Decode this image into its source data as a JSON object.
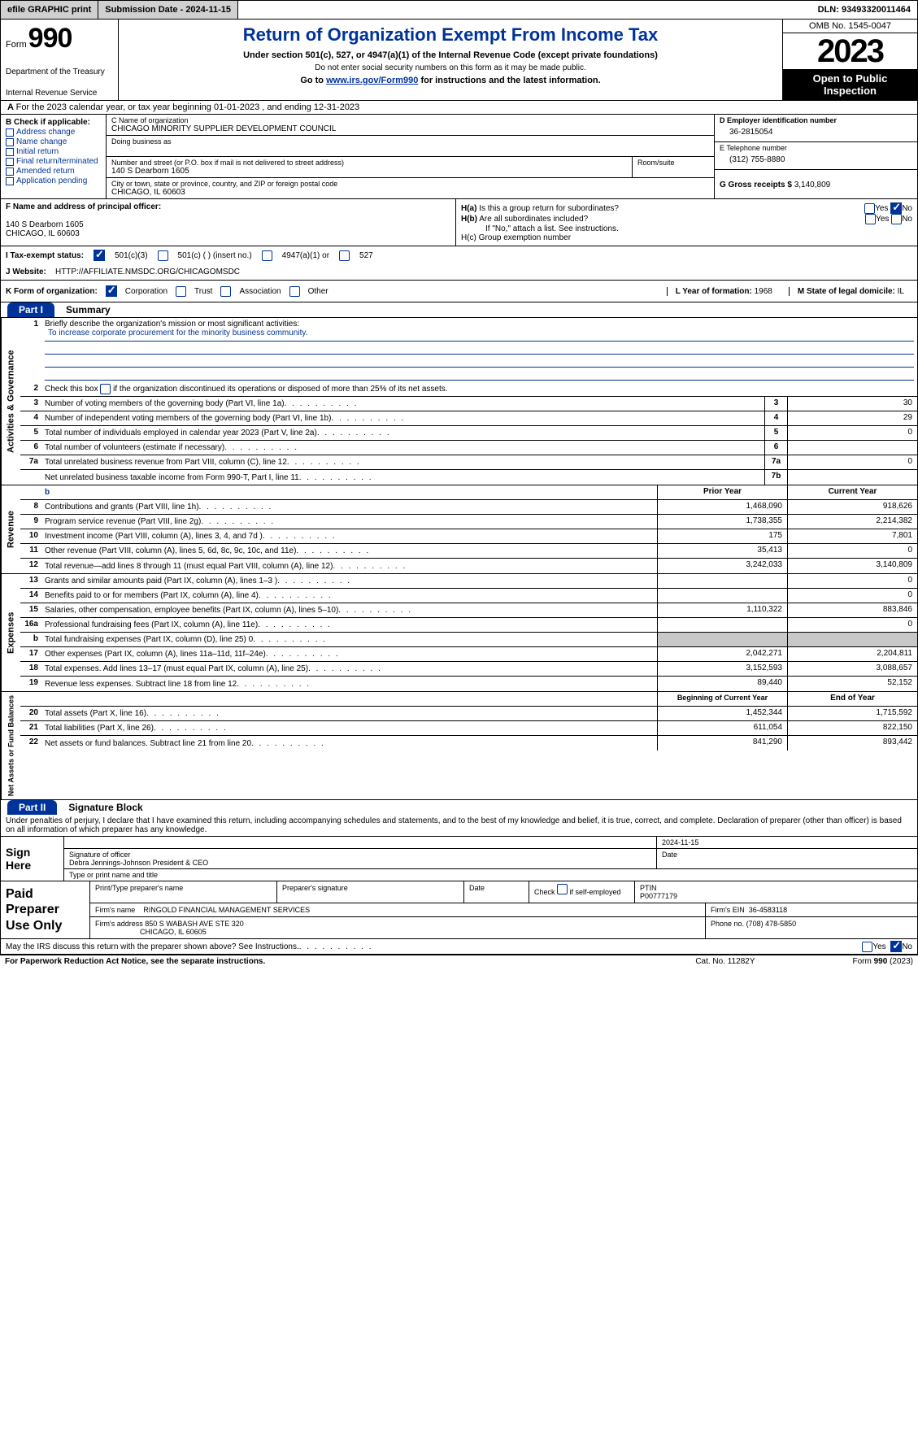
{
  "topbar": {
    "efile": "efile GRAPHIC print",
    "submission": "Submission Date - 2024-11-15",
    "dln": "DLN: 93493320011464"
  },
  "header": {
    "form_word": "Form",
    "form_num": "990",
    "dept": "Department of the Treasury",
    "irs": "Internal Revenue Service",
    "title": "Return of Organization Exempt From Income Tax",
    "subtitle": "Under section 501(c), 527, or 4947(a)(1) of the Internal Revenue Code (except private foundations)",
    "subtext": "Do not enter social security numbers on this form as it may be made public.",
    "goto_pre": "Go to ",
    "goto_link": "www.irs.gov/Form990",
    "goto_post": " for instructions and the latest information.",
    "omb": "OMB No. 1545-0047",
    "year": "2023",
    "open": "Open to Public Inspection"
  },
  "row_a": "For the 2023 calendar year, or tax year beginning 01-01-2023    , and ending 12-31-2023",
  "box_b": {
    "label": "B Check if applicable:",
    "items": [
      "Address change",
      "Name change",
      "Initial return",
      "Final return/terminated",
      "Amended return",
      "Application pending"
    ]
  },
  "box_c": {
    "name_lbl": "C Name of organization",
    "name": "CHICAGO MINORITY SUPPLIER DEVELOPMENT COUNCIL",
    "dba_lbl": "Doing business as",
    "addr_lbl": "Number and street (or P.O. box if mail is not delivered to street address)",
    "addr": "140 S Dearborn 1605",
    "room_lbl": "Room/suite",
    "city_lbl": "City or town, state or province, country, and ZIP or foreign postal code",
    "city": "CHICAGO, IL  60603"
  },
  "box_d": {
    "lbl": "D Employer identification number",
    "val": "36-2815054"
  },
  "box_e": {
    "lbl": "E Telephone number",
    "val": "(312) 755-8880"
  },
  "box_g": {
    "lbl": "G Gross receipts $",
    "val": "3,140,809"
  },
  "box_f": {
    "lbl": "F  Name and address of principal officer:",
    "addr1": "140 S Dearborn 1605",
    "addr2": "CHICAGO, IL  60603"
  },
  "box_h": {
    "ha": "H(a)  Is this a group return for subordinates?",
    "hb": "H(b)  Are all subordinates included?",
    "hb_note": "If \"No,\" attach a list. See instructions.",
    "hc": "H(c)  Group exemption number"
  },
  "box_i": {
    "lbl": "I    Tax-exempt status:",
    "opts": [
      "501(c)(3)",
      "501(c) (  ) (insert no.)",
      "4947(a)(1) or",
      "527"
    ]
  },
  "box_j": {
    "lbl": "J    Website:",
    "val": "HTTP://AFFILIATE.NMSDC.ORG/CHICAGOMSDC"
  },
  "box_k": {
    "lbl": "K Form of organization:",
    "opts": [
      "Corporation",
      "Trust",
      "Association",
      "Other"
    ]
  },
  "box_l": {
    "lbl": "L Year of formation:",
    "val": "1968"
  },
  "box_m": {
    "lbl": "M State of legal domicile:",
    "val": "IL"
  },
  "part1": {
    "num": "Part I",
    "title": "Summary"
  },
  "sections": {
    "gov": {
      "label": "Activities & Governance",
      "q1": "Briefly describe the organization's mission or most significant activities:",
      "mission": "To increase corporate procurement for the minority business community.",
      "q2": "Check this box         if the organization discontinued its operations or disposed of more than 25% of its net assets.",
      "rows": [
        {
          "n": "3",
          "d": "Number of voting members of the governing body (Part VI, line 1a)",
          "c": "3",
          "v": "30"
        },
        {
          "n": "4",
          "d": "Number of independent voting members of the governing body (Part VI, line 1b)",
          "c": "4",
          "v": "29"
        },
        {
          "n": "5",
          "d": "Total number of individuals employed in calendar year 2023 (Part V, line 2a)",
          "c": "5",
          "v": "0"
        },
        {
          "n": "6",
          "d": "Total number of volunteers (estimate if necessary)",
          "c": "6",
          "v": ""
        },
        {
          "n": "7a",
          "d": "Total unrelated business revenue from Part VIII, column (C), line 12",
          "c": "7a",
          "v": "0"
        },
        {
          "n": "",
          "d": "Net unrelated business taxable income from Form 990-T, Part I, line 11",
          "c": "7b",
          "v": ""
        }
      ]
    },
    "rev": {
      "label": "Revenue",
      "hdr_prior": "Prior Year",
      "hdr_curr": "Current Year",
      "rows": [
        {
          "n": "8",
          "d": "Contributions and grants (Part VIII, line 1h)",
          "p": "1,468,090",
          "c": "918,626"
        },
        {
          "n": "9",
          "d": "Program service revenue (Part VIII, line 2g)",
          "p": "1,738,355",
          "c": "2,214,382"
        },
        {
          "n": "10",
          "d": "Investment income (Part VIII, column (A), lines 3, 4, and 7d )",
          "p": "175",
          "c": "7,801"
        },
        {
          "n": "11",
          "d": "Other revenue (Part VIII, column (A), lines 5, 6d, 8c, 9c, 10c, and 11e)",
          "p": "35,413",
          "c": "0"
        },
        {
          "n": "12",
          "d": "Total revenue—add lines 8 through 11 (must equal Part VIII, column (A), line 12)",
          "p": "3,242,033",
          "c": "3,140,809"
        }
      ]
    },
    "exp": {
      "label": "Expenses",
      "rows": [
        {
          "n": "13",
          "d": "Grants and similar amounts paid (Part IX, column (A), lines 1–3 )",
          "p": "",
          "c": "0"
        },
        {
          "n": "14",
          "d": "Benefits paid to or for members (Part IX, column (A), line 4)",
          "p": "",
          "c": "0"
        },
        {
          "n": "15",
          "d": "Salaries, other compensation, employee benefits (Part IX, column (A), lines 5–10)",
          "p": "1,110,322",
          "c": "883,846"
        },
        {
          "n": "16a",
          "d": "Professional fundraising fees (Part IX, column (A), line 11e)",
          "p": "",
          "c": "0"
        },
        {
          "n": "b",
          "d": "Total fundraising expenses (Part IX, column (D), line 25) 0",
          "p": "GRAY",
          "c": "GRAY"
        },
        {
          "n": "17",
          "d": "Other expenses (Part IX, column (A), lines 11a–11d, 11f–24e)",
          "p": "2,042,271",
          "c": "2,204,811"
        },
        {
          "n": "18",
          "d": "Total expenses. Add lines 13–17 (must equal Part IX, column (A), line 25)",
          "p": "3,152,593",
          "c": "3,088,657"
        },
        {
          "n": "19",
          "d": "Revenue less expenses. Subtract line 18 from line 12",
          "p": "89,440",
          "c": "52,152"
        }
      ]
    },
    "net": {
      "label": "Net Assets or Fund Balances",
      "hdr_begin": "Beginning of Current Year",
      "hdr_end": "End of Year",
      "rows": [
        {
          "n": "20",
          "d": "Total assets (Part X, line 16)",
          "p": "1,452,344",
          "c": "1,715,592"
        },
        {
          "n": "21",
          "d": "Total liabilities (Part X, line 26)",
          "p": "611,054",
          "c": "822,150"
        },
        {
          "n": "22",
          "d": "Net assets or fund balances. Subtract line 21 from line 20",
          "p": "841,290",
          "c": "893,442"
        }
      ]
    }
  },
  "part2": {
    "num": "Part II",
    "title": "Signature Block"
  },
  "perjury": "Under penalties of perjury, I declare that I have examined this return, including accompanying schedules and statements, and to the best of my knowledge and belief, it is true, correct, and complete. Declaration of preparer (other than officer) is based on all information of which preparer has any knowledge.",
  "sign": {
    "here": "Sign Here",
    "sig_lbl": "Signature of officer",
    "name": "Debra Jennings-Johnson  President & CEO",
    "type_lbl": "Type or print name and title",
    "date_lbl": "Date",
    "date": "2024-11-15"
  },
  "prep": {
    "title": "Paid Preparer Use Only",
    "name_lbl": "Print/Type preparer's name",
    "sig_lbl": "Preparer's signature",
    "date_lbl": "Date",
    "check_lbl": "Check         if self-employed",
    "ptin_lbl": "PTIN",
    "ptin": "P00777179",
    "firm_name_lbl": "Firm's name",
    "firm_name": "RINGOLD FINANCIAL MANAGEMENT SERVICES",
    "firm_ein_lbl": "Firm's EIN",
    "firm_ein": "36-4583118",
    "firm_addr_lbl": "Firm's address",
    "firm_addr1": "850 S WABASH AVE STE 320",
    "firm_addr2": "CHICAGO, IL  60605",
    "phone_lbl": "Phone no.",
    "phone": "(708) 478-5850"
  },
  "discuss": "May the IRS discuss this return with the preparer shown above? See Instructions.",
  "footer": {
    "pra": "For Paperwork Reduction Act Notice, see the separate instructions.",
    "cat": "Cat. No. 11282Y",
    "form": "Form 990 (2023)"
  },
  "yes": "Yes",
  "no": "No"
}
